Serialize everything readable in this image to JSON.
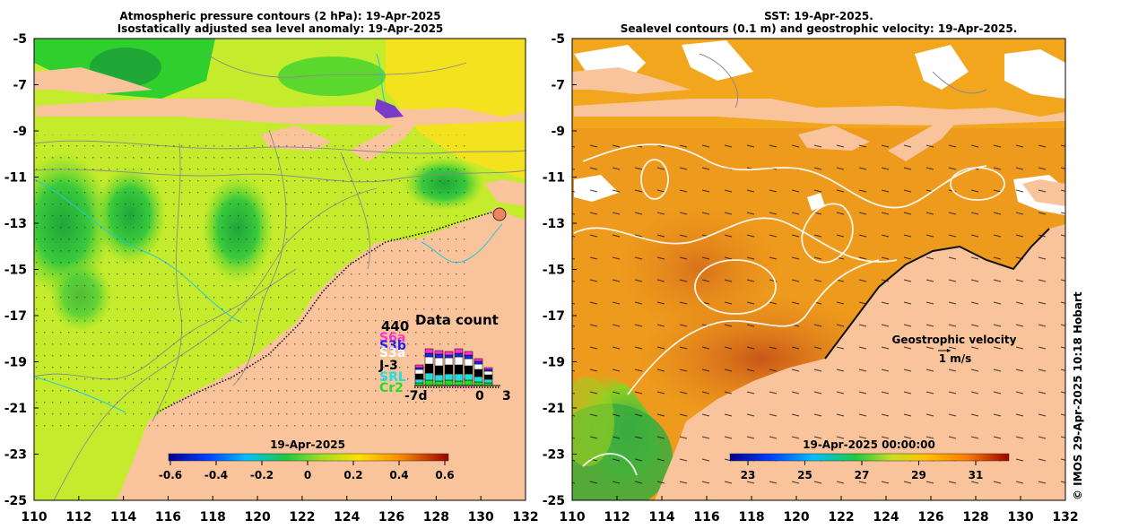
{
  "left_map": {
    "title_line1": "Atmospheric pressure contours (2 hPa): 19-Apr-2025",
    "title_line2": "Isostatically adjusted sea level anomaly: 19-Apr-2025",
    "colorbar_label": "19-Apr-2025",
    "colorbar_ticks": [
      "-0.6",
      "-0.4",
      "-0.2",
      "0",
      "0.2",
      "0.4",
      "0.6"
    ],
    "data_count": {
      "title": "Data count",
      "max": "440",
      "satellites": [
        {
          "name": "S6a",
          "color": "#ff33cc"
        },
        {
          "name": "S3b",
          "color": "#2222ee"
        },
        {
          "name": "S3a",
          "color": "#ffffff"
        },
        {
          "name": "J-3",
          "color": "#000000"
        },
        {
          "name": "SRL",
          "color": "#22dddd"
        },
        {
          "name": "Cr2",
          "color": "#22dd22"
        }
      ],
      "axis_start": "-7d",
      "axis_mid": "0",
      "axis_end": "3"
    }
  },
  "right_map": {
    "title_line1": "SST: 19-Apr-2025.",
    "title_line2": "Sealevel contours (0.1 m) and geostrophic velocity: 19-Apr-2025.",
    "colorbar_label": "19-Apr-2025 00:00:00",
    "colorbar_ticks": [
      "23",
      "25",
      "27",
      "29",
      "31"
    ],
    "legend_title": "Geostrophic velocity",
    "legend_scale": "1 m/s"
  },
  "y_axis_ticks": [
    "-5",
    "-7",
    "-9",
    "-11",
    "-13",
    "-15",
    "-17",
    "-19",
    "-21",
    "-23",
    "-25"
  ],
  "x_axis_ticks": [
    "110",
    "112",
    "114",
    "116",
    "118",
    "120",
    "122",
    "124",
    "126",
    "128",
    "130",
    "132"
  ],
  "copyright": "© IMOS 29-Apr-2025 10:18 Hobart",
  "colors": {
    "land": "#f9c49b",
    "left_sea": "#c4ec2c",
    "right_sea": "#ee9a1c"
  }
}
